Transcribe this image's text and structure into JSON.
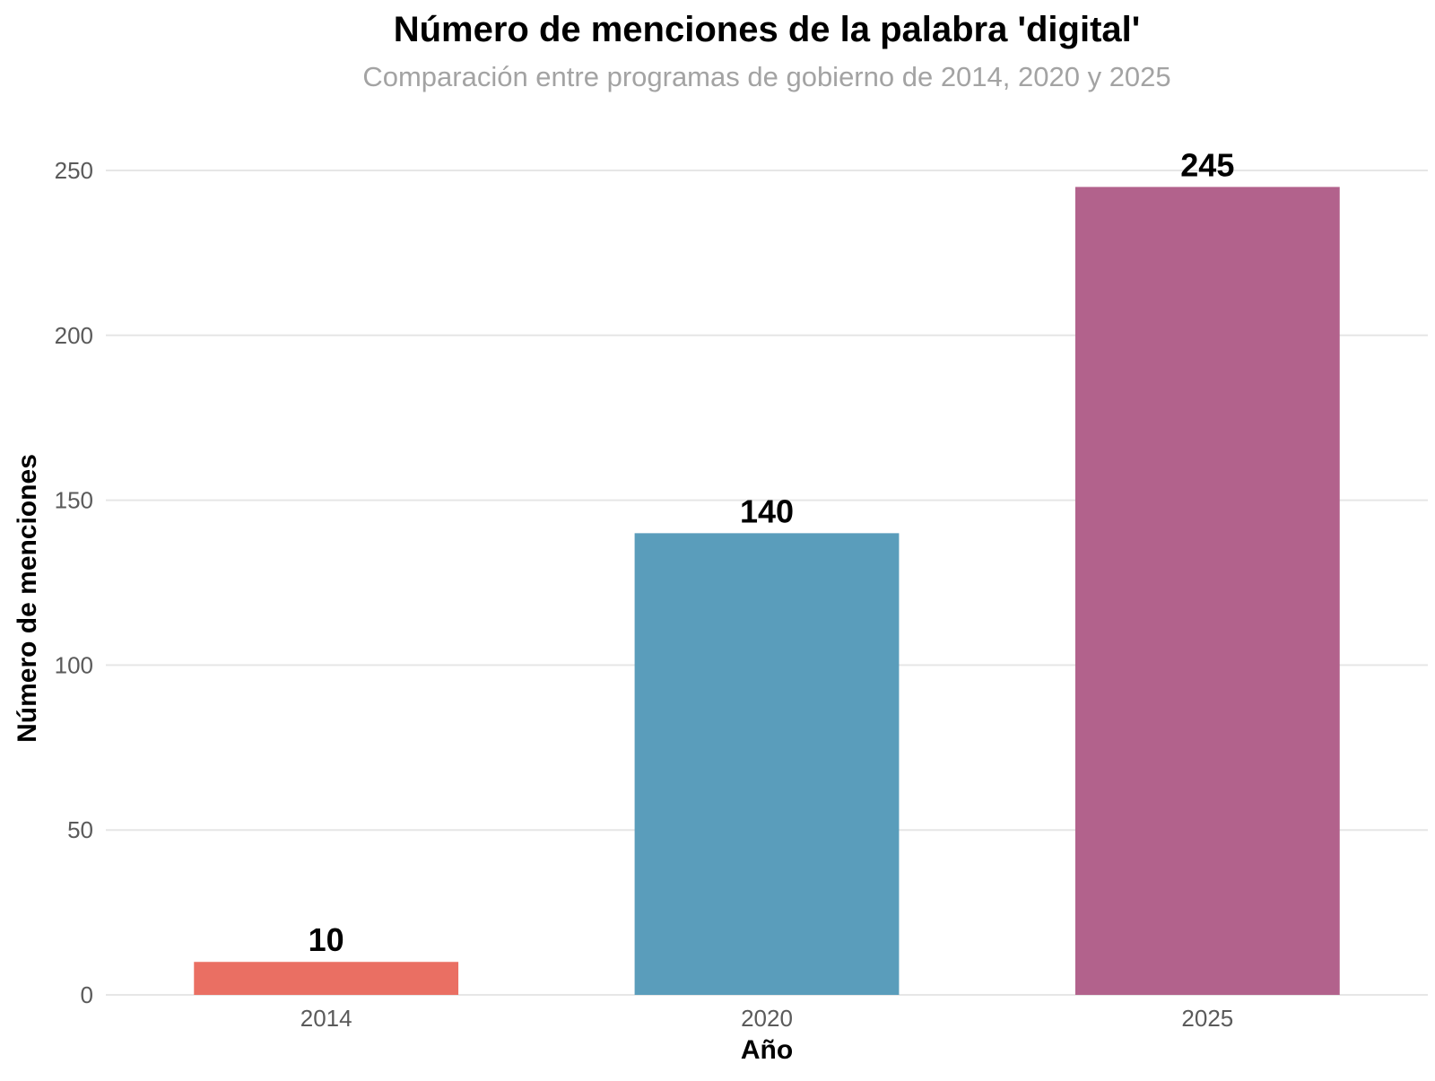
{
  "chart_data": {
    "type": "bar",
    "title": "Número de menciones de la palabra 'digital'",
    "subtitle": "Comparación entre programas de gobierno de 2014, 2020 y 2025",
    "xlabel": "Año",
    "ylabel": "Número de menciones",
    "categories": [
      "2014",
      "2020",
      "2025"
    ],
    "values": [
      10,
      140,
      245
    ],
    "data_labels": [
      "10",
      "140",
      "245"
    ],
    "colors": [
      "#EA6F63",
      "#5A9DBB",
      "#B2628C"
    ],
    "ylim": [
      0,
      250
    ],
    "yticks": [
      0,
      50,
      100,
      150,
      200,
      250
    ],
    "grid": "horizontal",
    "legend": "none"
  }
}
